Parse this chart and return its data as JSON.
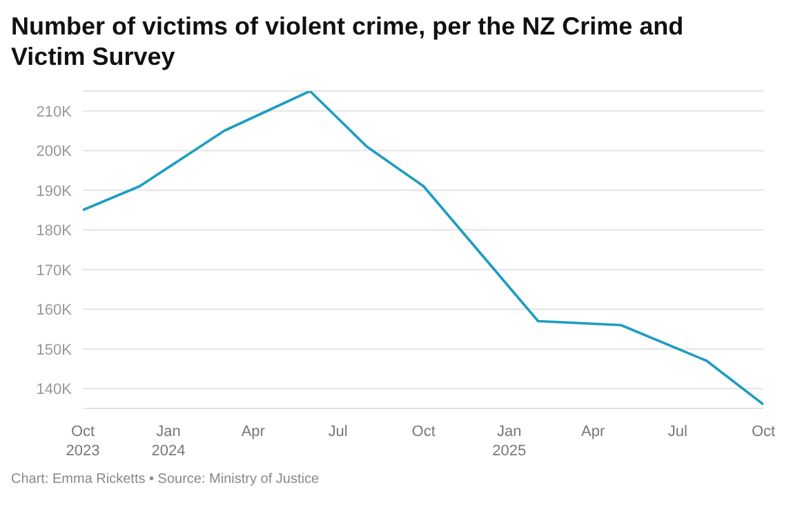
{
  "chart_data": {
    "type": "line",
    "title": "Number of victims of violent crime, per the NZ Crime and Victim Survey",
    "x": [
      "2023-10",
      "2023-12",
      "2024-03",
      "2024-06",
      "2024-08",
      "2024-10",
      "2025-02",
      "2025-05",
      "2025-08",
      "2025-10"
    ],
    "series": [
      {
        "color": "#1d9dc1",
        "values": [
          185000,
          191000,
          205000,
          215000,
          201000,
          191000,
          157000,
          156000,
          147000,
          136000
        ]
      }
    ],
    "xlim": [
      "2023-10",
      "2025-10"
    ],
    "xticks": [
      {
        "value": "2023-10",
        "label": "Oct 2023"
      },
      {
        "value": "2024-01",
        "label": "Jan 2024"
      },
      {
        "value": "2024-04",
        "label": "Apr"
      },
      {
        "value": "2024-07",
        "label": "Jul"
      },
      {
        "value": "2024-10",
        "label": "Oct"
      },
      {
        "value": "2025-01",
        "label": "Jan 2025"
      },
      {
        "value": "2025-04",
        "label": "Apr"
      },
      {
        "value": "2025-07",
        "label": "Jul"
      },
      {
        "value": "2025-10",
        "label": "Oct"
      }
    ],
    "ylim": [
      135000,
      215000
    ],
    "yticks": [
      {
        "value": 140000,
        "label": "140K"
      },
      {
        "value": 150000,
        "label": "150K"
      },
      {
        "value": 160000,
        "label": "160K"
      },
      {
        "value": 170000,
        "label": "170K"
      },
      {
        "value": 180000,
        "label": "180K"
      },
      {
        "value": 190000,
        "label": "190K"
      },
      {
        "value": 200000,
        "label": "200K"
      },
      {
        "value": 210000,
        "label": "210K"
      }
    ],
    "grid": "y",
    "legend": false,
    "marker": "none",
    "line_style": "solid",
    "annotations": [
      "Chart: Emma Ricketts • Source: Ministry of Justice"
    ]
  }
}
